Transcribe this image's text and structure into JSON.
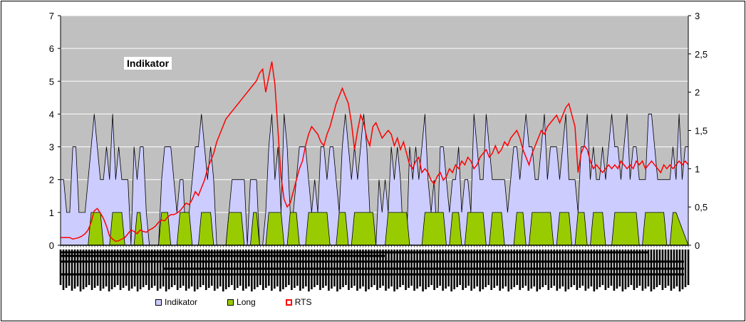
{
  "chart_data": {
    "type": "area",
    "title": "",
    "inner_label": "Indikator",
    "left_axis": {
      "min": 0,
      "max": 7,
      "ticks": [
        "0",
        "1",
        "2",
        "3",
        "4",
        "5",
        "6",
        "7"
      ]
    },
    "right_axis": {
      "min": 0,
      "max": 3,
      "ticks": [
        "0",
        "0,5",
        "1",
        "1,5",
        "2",
        "2,5",
        "3"
      ]
    },
    "grid": true,
    "legend_position": "bottom",
    "colors": {
      "plot_bg": "#c0c0c0",
      "indikator_fill": "#ccccff",
      "long_fill": "#99cc00",
      "rts_line": "#ff0000",
      "gridline": "#ffffff"
    },
    "series": [
      {
        "name": "Indikator",
        "axis": "left",
        "style": "area",
        "values": [
          2,
          2,
          1,
          1,
          3,
          3,
          1,
          1,
          1,
          2,
          3,
          4,
          3,
          2,
          2,
          3,
          2,
          4,
          2,
          3,
          2,
          2,
          2,
          0,
          3,
          2,
          3,
          3,
          1,
          0,
          0,
          0,
          0,
          2,
          3,
          3,
          3,
          2,
          1,
          2,
          2,
          0,
          1,
          2,
          3,
          3,
          4,
          3,
          2,
          3,
          2,
          0,
          0,
          0,
          0,
          1,
          2,
          2,
          2,
          2,
          2,
          0,
          2,
          2,
          2,
          0,
          0,
          1,
          3,
          4,
          2,
          3,
          1,
          4,
          3,
          1,
          1,
          2,
          3,
          3,
          3,
          2,
          1,
          2,
          1,
          3,
          3,
          2,
          3,
          3,
          2,
          1,
          3,
          4,
          3,
          2,
          3,
          2,
          3,
          4,
          3,
          1,
          0,
          0,
          2,
          1,
          2,
          1,
          3,
          2,
          3,
          2,
          0,
          0,
          3,
          2,
          3,
          2,
          3,
          4,
          2,
          1,
          2,
          0,
          3,
          3,
          2,
          1,
          2,
          2,
          3,
          1,
          2,
          2,
          1,
          4,
          3,
          2,
          2,
          4,
          3,
          2,
          2,
          2,
          2,
          2,
          1,
          2,
          3,
          3,
          2,
          3,
          4,
          3,
          3,
          2,
          2,
          3,
          4,
          2,
          3,
          3,
          3,
          2,
          3,
          4,
          2,
          2,
          2,
          1,
          3,
          3,
          4,
          2,
          3,
          2,
          2,
          3,
          2,
          3,
          4,
          3,
          3,
          2,
          3,
          4,
          2,
          3,
          3,
          2,
          2,
          2,
          4,
          4,
          3,
          2,
          2,
          2,
          2,
          2,
          3,
          2,
          4,
          2,
          3,
          3
        ]
      },
      {
        "name": "Long",
        "axis": "left",
        "style": "area",
        "values": [
          0,
          0,
          0,
          0,
          0,
          0,
          0,
          0,
          0,
          0,
          1,
          1,
          1,
          1,
          0,
          0,
          0,
          1,
          1,
          1,
          1,
          0,
          0,
          0,
          0,
          1,
          1,
          0,
          0,
          0,
          0,
          0,
          0,
          1,
          1,
          1,
          0,
          0,
          0,
          1,
          1,
          1,
          1,
          0,
          0,
          0,
          1,
          1,
          1,
          1,
          0,
          0,
          0,
          0,
          0,
          1,
          1,
          1,
          1,
          1,
          0,
          0,
          0,
          1,
          1,
          0,
          0,
          0,
          1,
          1,
          1,
          1,
          1,
          0,
          0,
          1,
          1,
          1,
          0,
          0,
          0,
          1,
          1,
          1,
          1,
          1,
          1,
          1,
          0,
          0,
          0,
          1,
          1,
          1,
          0,
          0,
          1,
          1,
          1,
          1,
          1,
          1,
          1,
          0,
          0,
          0,
          0,
          1,
          1,
          1,
          1,
          1,
          1,
          1,
          0,
          0,
          0,
          0,
          0,
          1,
          1,
          1,
          1,
          1,
          1,
          1,
          0,
          0,
          1,
          1,
          1,
          0,
          0,
          1,
          1,
          1,
          1,
          1,
          1,
          0,
          0,
          1,
          1,
          1,
          1,
          0,
          0,
          0,
          0,
          1,
          1,
          1,
          0,
          0,
          1,
          1,
          1,
          1,
          1,
          1,
          1,
          0,
          0,
          1,
          1,
          1,
          1,
          0,
          0,
          1,
          1,
          1,
          0,
          0,
          1,
          1,
          1,
          1,
          0,
          0,
          0,
          1,
          1,
          1,
          1,
          1,
          1,
          1,
          1,
          0,
          0,
          1,
          1,
          1,
          1,
          1,
          1,
          1,
          0,
          0,
          1,
          1
        ]
      },
      {
        "name": "RTS",
        "axis": "right",
        "style": "line",
        "values": [
          0.1,
          0.1,
          0.1,
          0.1,
          0.08,
          0.09,
          0.1,
          0.12,
          0.15,
          0.2,
          0.3,
          0.45,
          0.48,
          0.42,
          0.35,
          0.25,
          0.12,
          0.08,
          0.05,
          0.06,
          0.08,
          0.1,
          0.15,
          0.2,
          0.18,
          0.15,
          0.2,
          0.18,
          0.17,
          0.2,
          0.22,
          0.25,
          0.3,
          0.33,
          0.32,
          0.37,
          0.4,
          0.4,
          0.42,
          0.45,
          0.5,
          0.55,
          0.53,
          0.6,
          0.7,
          0.65,
          0.75,
          0.85,
          1.0,
          1.1,
          1.2,
          1.35,
          1.45,
          1.55,
          1.65,
          1.7,
          1.75,
          1.8,
          1.85,
          1.9,
          1.95,
          2.0,
          2.05,
          2.1,
          2.15,
          2.25,
          2.3,
          2.0,
          2.2,
          2.4,
          2.1,
          1.5,
          0.9,
          0.6,
          0.5,
          0.55,
          0.7,
          0.85,
          1.0,
          1.1,
          1.3,
          1.45,
          1.55,
          1.5,
          1.45,
          1.35,
          1.3,
          1.45,
          1.55,
          1.7,
          1.85,
          1.95,
          2.05,
          1.95,
          1.85,
          1.6,
          1.25,
          1.5,
          1.7,
          1.6,
          1.4,
          1.3,
          1.55,
          1.6,
          1.5,
          1.4,
          1.45,
          1.5,
          1.45,
          1.3,
          1.4,
          1.25,
          1.35,
          1.2,
          1.05,
          1.0,
          1.1,
          1.15,
          0.95,
          1.0,
          0.95,
          0.85,
          0.8,
          0.9,
          0.95,
          0.85,
          0.9,
          1.0,
          0.95,
          1.05,
          1.0,
          1.1,
          1.05,
          1.15,
          1.1,
          1.0,
          1.05,
          1.15,
          1.2,
          1.25,
          1.15,
          1.2,
          1.3,
          1.2,
          1.25,
          1.35,
          1.3,
          1.4,
          1.45,
          1.5,
          1.4,
          1.25,
          1.15,
          1.05,
          1.2,
          1.3,
          1.4,
          1.5,
          1.45,
          1.55,
          1.6,
          1.65,
          1.7,
          1.6,
          1.7,
          1.8,
          1.85,
          1.7,
          1.55,
          0.95,
          1.2,
          1.3,
          1.25,
          1.1,
          1.0,
          1.05,
          1.0,
          0.95,
          1.0,
          1.05,
          1.0,
          1.05,
          1.0,
          1.1,
          1.05,
          1.0,
          1.05,
          1.0,
          1.1,
          1.05,
          1.1,
          1.0,
          1.05,
          1.1,
          1.05,
          1.0,
          0.95,
          1.05,
          1.0,
          1.05,
          1.0,
          1.05,
          1.1,
          1.05,
          1.1,
          1.05
        ]
      }
    ]
  },
  "legend": {
    "items": [
      {
        "label": "Indikator",
        "color": "#ccccff"
      },
      {
        "label": "Long",
        "color": "#99cc00"
      },
      {
        "label": "RTS",
        "color": "#ff0000"
      }
    ]
  }
}
